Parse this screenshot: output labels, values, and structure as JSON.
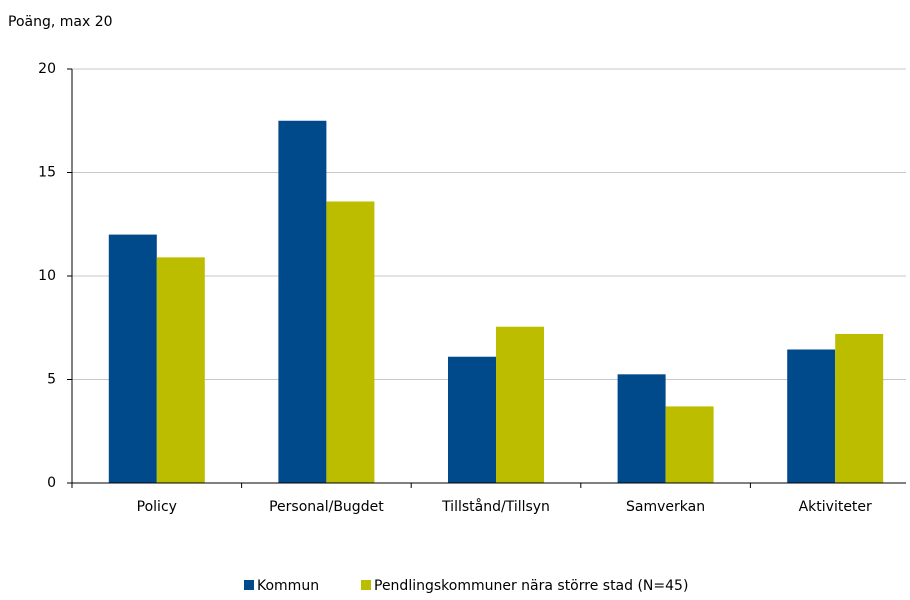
{
  "chart_data": {
    "type": "bar",
    "y_label": "Poäng, max 20",
    "categories": [
      "Policy",
      "Personal/Bugdet",
      "Tillstånd/Tillsyn",
      "Samverkan",
      "Aktiviteter"
    ],
    "series": [
      {
        "name": "Kommun",
        "color": "#004a8c",
        "values": [
          12.0,
          17.5,
          6.1,
          5.25,
          6.45
        ]
      },
      {
        "name": "Pendlingskommuner nära större stad (N=45)",
        "color": "#bdbd00",
        "values": [
          10.9,
          13.6,
          7.55,
          3.7,
          7.2
        ]
      }
    ],
    "ylim": [
      0,
      20
    ],
    "yticks": [
      0,
      5,
      10,
      15,
      20
    ],
    "grid": true
  }
}
